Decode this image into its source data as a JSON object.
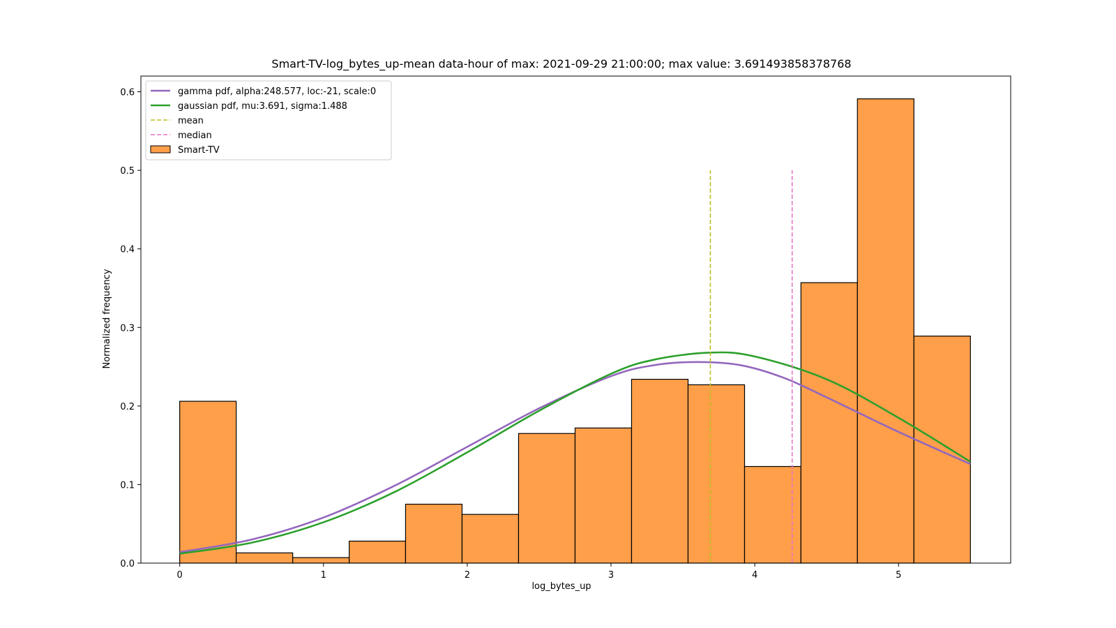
{
  "chart_data": {
    "type": "bar",
    "title": "Smart-TV-log_bytes_up-mean data-hour of max: 2021-09-29 21:00:00; max value: 3.691493858378768",
    "xlabel": "log_bytes_up",
    "ylabel": "Normalized frequency",
    "xlim": [
      -0.27,
      5.78
    ],
    "ylim": [
      0,
      0.62
    ],
    "xticks": [
      0,
      1,
      2,
      3,
      4,
      5
    ],
    "yticks": [
      0.0,
      0.1,
      0.2,
      0.3,
      0.4,
      0.5,
      0.6
    ],
    "grid": false,
    "legend_placement": "top-left",
    "histogram": {
      "name": "Smart-TV",
      "color": "#ff9f4a",
      "edgecolor": "#000000",
      "bin_edges": [
        0.0,
        0.393,
        0.786,
        1.179,
        1.571,
        1.964,
        2.357,
        2.75,
        3.143,
        3.536,
        3.929,
        4.321,
        4.714,
        5.107,
        5.5
      ],
      "values": [
        0.206,
        0.013,
        0.007,
        0.028,
        0.075,
        0.062,
        0.165,
        0.172,
        0.234,
        0.227,
        0.123,
        0.357,
        0.591,
        0.289
      ]
    },
    "series": [
      {
        "name": "gamma pdf, alpha:248.577, loc:-21, scale:0",
        "type": "line",
        "color": "#9467bd",
        "x": [
          0,
          0.5,
          1,
          1.5,
          2,
          2.5,
          3,
          3.3,
          3.6,
          3.9,
          4.2,
          4.5,
          5,
          5.5
        ],
        "y": [
          0.014,
          0.03,
          0.058,
          0.099,
          0.148,
          0.197,
          0.238,
          0.252,
          0.256,
          0.252,
          0.236,
          0.211,
          0.167,
          0.126
        ]
      },
      {
        "name": "gaussian pdf, mu:3.691, sigma:1.488",
        "type": "line",
        "color": "#2ca02c",
        "x": [
          0,
          0.5,
          1,
          1.5,
          2,
          2.5,
          3,
          3.3,
          3.691,
          4,
          4.5,
          5,
          5.5
        ],
        "y": [
          0.012,
          0.026,
          0.052,
          0.091,
          0.141,
          0.194,
          0.241,
          0.259,
          0.268,
          0.263,
          0.234,
          0.185,
          0.129
        ]
      },
      {
        "name": "mean",
        "type": "vline",
        "color": "#bcbd22",
        "x": 3.691,
        "ymax": 0.5
      },
      {
        "name": "median",
        "type": "vline",
        "color": "#e377c2",
        "x": 4.26,
        "ymax": 0.5
      }
    ]
  }
}
